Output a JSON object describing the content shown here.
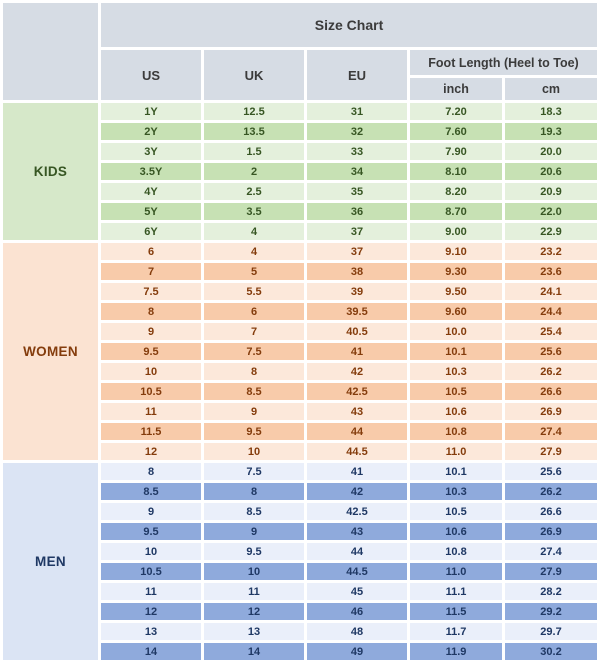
{
  "chart_data": {
    "type": "table",
    "title": "Size Chart",
    "column_group_label": "Foot Length (Heel to Toe)",
    "columns": [
      "US",
      "UK",
      "EU"
    ],
    "sub_columns": [
      "inch",
      "cm"
    ],
    "sections": [
      {
        "label": "KIDS",
        "rows": [
          [
            "1Y",
            "12.5",
            "31",
            "7.20",
            "18.3"
          ],
          [
            "2Y",
            "13.5",
            "32",
            "7.60",
            "19.3"
          ],
          [
            "3Y",
            "1.5",
            "33",
            "7.90",
            "20.0"
          ],
          [
            "3.5Y",
            "2",
            "34",
            "8.10",
            "20.6"
          ],
          [
            "4Y",
            "2.5",
            "35",
            "8.20",
            "20.9"
          ],
          [
            "5Y",
            "3.5",
            "36",
            "8.70",
            "22.0"
          ],
          [
            "6Y",
            "4",
            "37",
            "9.00",
            "22.9"
          ]
        ]
      },
      {
        "label": "WOMEN",
        "rows": [
          [
            "6",
            "4",
            "37",
            "9.10",
            "23.2"
          ],
          [
            "7",
            "5",
            "38",
            "9.30",
            "23.6"
          ],
          [
            "7.5",
            "5.5",
            "39",
            "9.50",
            "24.1"
          ],
          [
            "8",
            "6",
            "39.5",
            "9.60",
            "24.4"
          ],
          [
            "9",
            "7",
            "40.5",
            "10.0",
            "25.4"
          ],
          [
            "9.5",
            "7.5",
            "41",
            "10.1",
            "25.6"
          ],
          [
            "10",
            "8",
            "42",
            "10.3",
            "26.2"
          ],
          [
            "10.5",
            "8.5",
            "42.5",
            "10.5",
            "26.6"
          ],
          [
            "11",
            "9",
            "43",
            "10.6",
            "26.9"
          ],
          [
            "11.5",
            "9.5",
            "44",
            "10.8",
            "27.4"
          ],
          [
            "12",
            "10",
            "44.5",
            "11.0",
            "27.9"
          ]
        ]
      },
      {
        "label": "MEN",
        "rows": [
          [
            "8",
            "7.5",
            "41",
            "10.1",
            "25.6"
          ],
          [
            "8.5",
            "8",
            "42",
            "10.3",
            "26.2"
          ],
          [
            "9",
            "8.5",
            "42.5",
            "10.5",
            "26.6"
          ],
          [
            "9.5",
            "9",
            "43",
            "10.6",
            "26.9"
          ],
          [
            "10",
            "9.5",
            "44",
            "10.8",
            "27.4"
          ],
          [
            "10.5",
            "10",
            "44.5",
            "11.0",
            "27.9"
          ],
          [
            "11",
            "11",
            "45",
            "11.1",
            "28.2"
          ],
          [
            "12",
            "12",
            "46",
            "11.5",
            "29.2"
          ],
          [
            "13",
            "13",
            "48",
            "11.7",
            "29.7"
          ],
          [
            "14",
            "14",
            "49",
            "11.9",
            "30.2"
          ]
        ]
      }
    ]
  },
  "colors": {
    "header_bg": "#d6dce4",
    "header_text": "#3b3b3b",
    "sections": [
      {
        "label_bg": "#d6e8c9",
        "row_light": "#e4f0dc",
        "row_dark": "#c7e1b4",
        "text": "#375623"
      },
      {
        "label_bg": "#fbe3d2",
        "row_light": "#fce8da",
        "row_dark": "#f8cbaa",
        "text": "#843c0c"
      },
      {
        "label_bg": "#dbe4f4",
        "row_light": "#eaeffa",
        "row_dark": "#8faadc",
        "text": "#1f3864"
      }
    ]
  }
}
